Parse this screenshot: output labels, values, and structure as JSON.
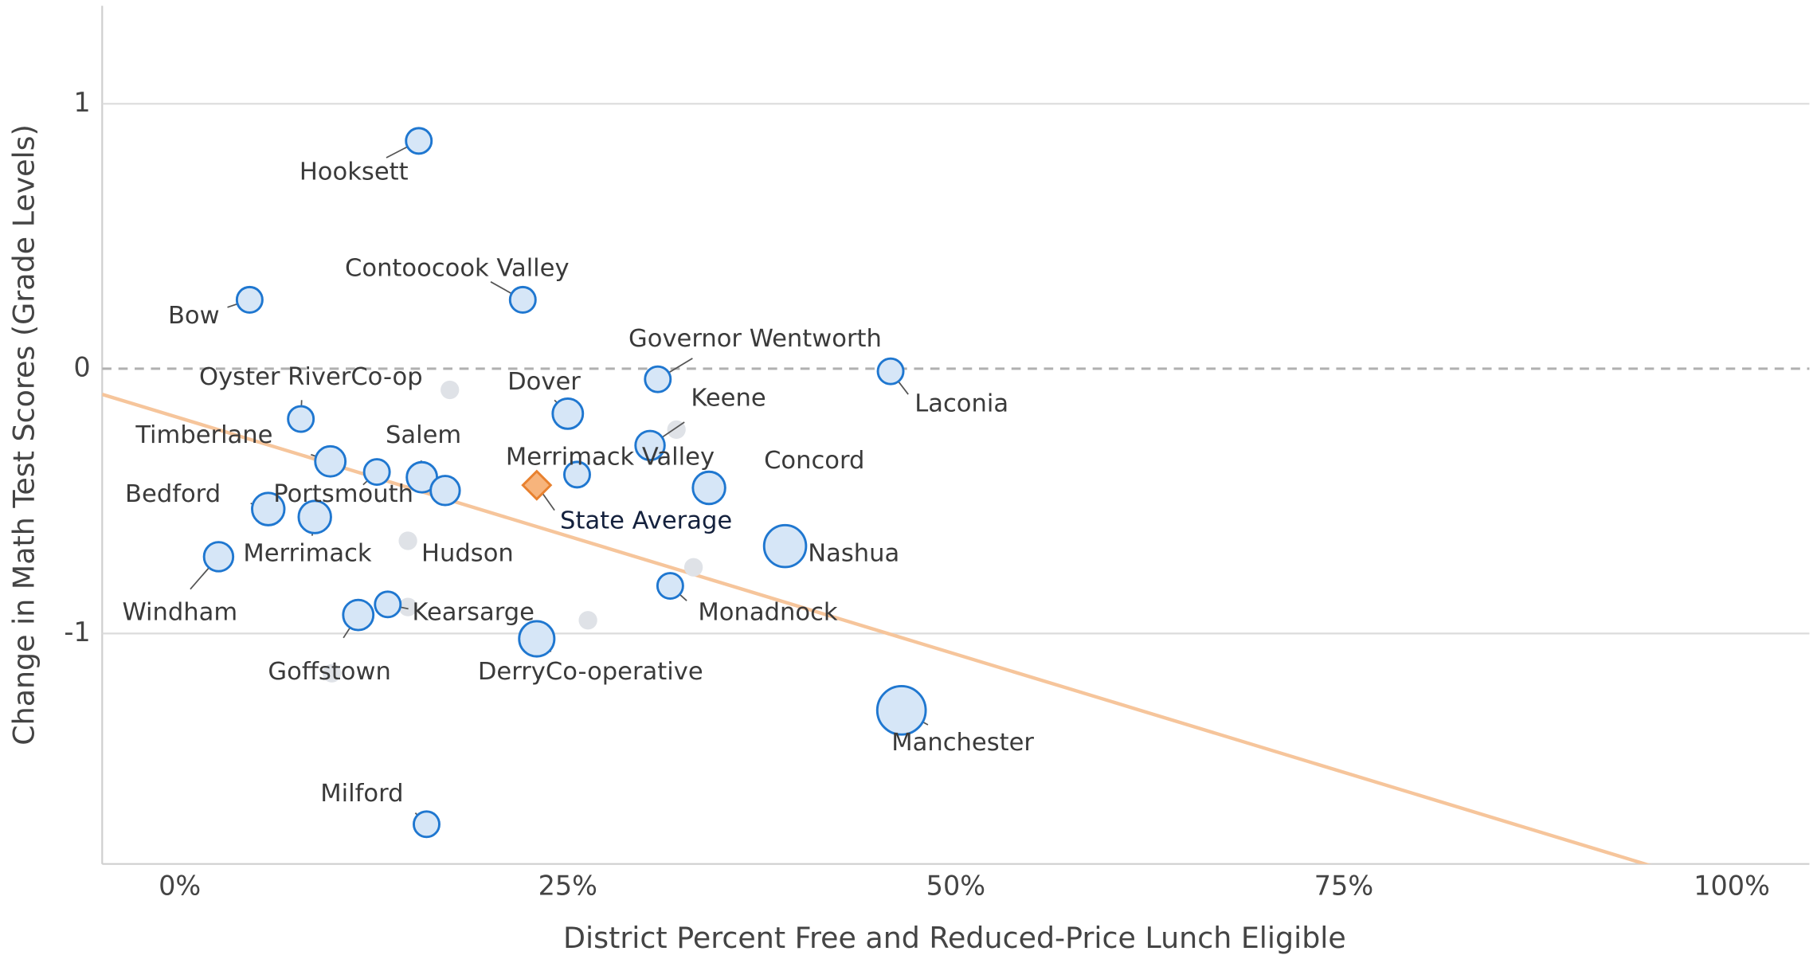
{
  "chart_data": {
    "type": "scatter",
    "xlabel": "District Percent Free and Reduced-Price Lunch Eligible",
    "ylabel": "Change in Math Test Scores (Grade Levels)",
    "xlim": [
      -5,
      105
    ],
    "ylim": [
      -1.87,
      1.37
    ],
    "xticks": [
      {
        "value": 0,
        "label": "0%"
      },
      {
        "value": 25,
        "label": "25%"
      },
      {
        "value": 50,
        "label": "50%"
      },
      {
        "value": 75,
        "label": "75%"
      },
      {
        "value": 100,
        "label": "100%"
      }
    ],
    "yticks": [
      -1,
      0,
      1
    ],
    "grid": true,
    "color": "#1f77d0",
    "fill": "#d6e6f7",
    "labels": [
      "Hooksett",
      "Contoocook Valley",
      "Bow",
      "Governor Wentworth",
      "Laconia",
      "Oyster RiverCo-op",
      "Dover",
      "Keene",
      "Timberlane",
      "Salem",
      "Portsmouth",
      "Hudson",
      "Merrimack Valley",
      "Concord",
      "Bedford",
      "Merrimack",
      "Nashua",
      "Windham",
      "Monadnock",
      "Kearsarge",
      "Goffstown",
      "DerryCo-operative",
      "Manchester",
      "Milford"
    ],
    "x": [
      15.4,
      22.1,
      4.5,
      30.8,
      45.8,
      7.8,
      25.0,
      30.3,
      9.7,
      15.6,
      12.7,
      17.1,
      25.6,
      34.1,
      5.7,
      8.7,
      39.0,
      2.5,
      31.6,
      13.4,
      11.5,
      23.0,
      46.5,
      15.9
    ],
    "y": [
      0.86,
      0.26,
      0.26,
      -0.04,
      -0.01,
      -0.19,
      -0.17,
      -0.29,
      -0.35,
      -0.41,
      -0.39,
      -0.46,
      -0.4,
      -0.45,
      -0.53,
      -0.56,
      -0.67,
      -0.71,
      -0.82,
      -0.89,
      -0.93,
      -1.02,
      -1.29,
      -1.72
    ],
    "sizes": [
      1,
      1,
      1,
      1,
      1,
      1,
      1.4,
      1.3,
      1.4,
      1.4,
      1,
      1.3,
      1,
      1.6,
      1.6,
      1.6,
      2.7,
      1.3,
      1,
      1,
      1.4,
      1.9,
      3.6,
      1
    ],
    "other_points": {
      "color": "#dfe2e7",
      "x": [
        17.4,
        32.0,
        14.7,
        33.1,
        14.7,
        26.3,
        9.8
      ],
      "y": [
        -0.08,
        -0.23,
        -0.65,
        -0.75,
        -0.9,
        -0.95,
        -1.15
      ]
    },
    "state_average": {
      "label": "State Average",
      "x": 23.0,
      "y": -0.44,
      "color": "#e8812f",
      "fill": "#f7b47c"
    },
    "trend": {
      "color": "#f6c59b",
      "x": [
        -5,
        105
      ],
      "y": [
        -0.097,
        -2.059
      ]
    }
  }
}
